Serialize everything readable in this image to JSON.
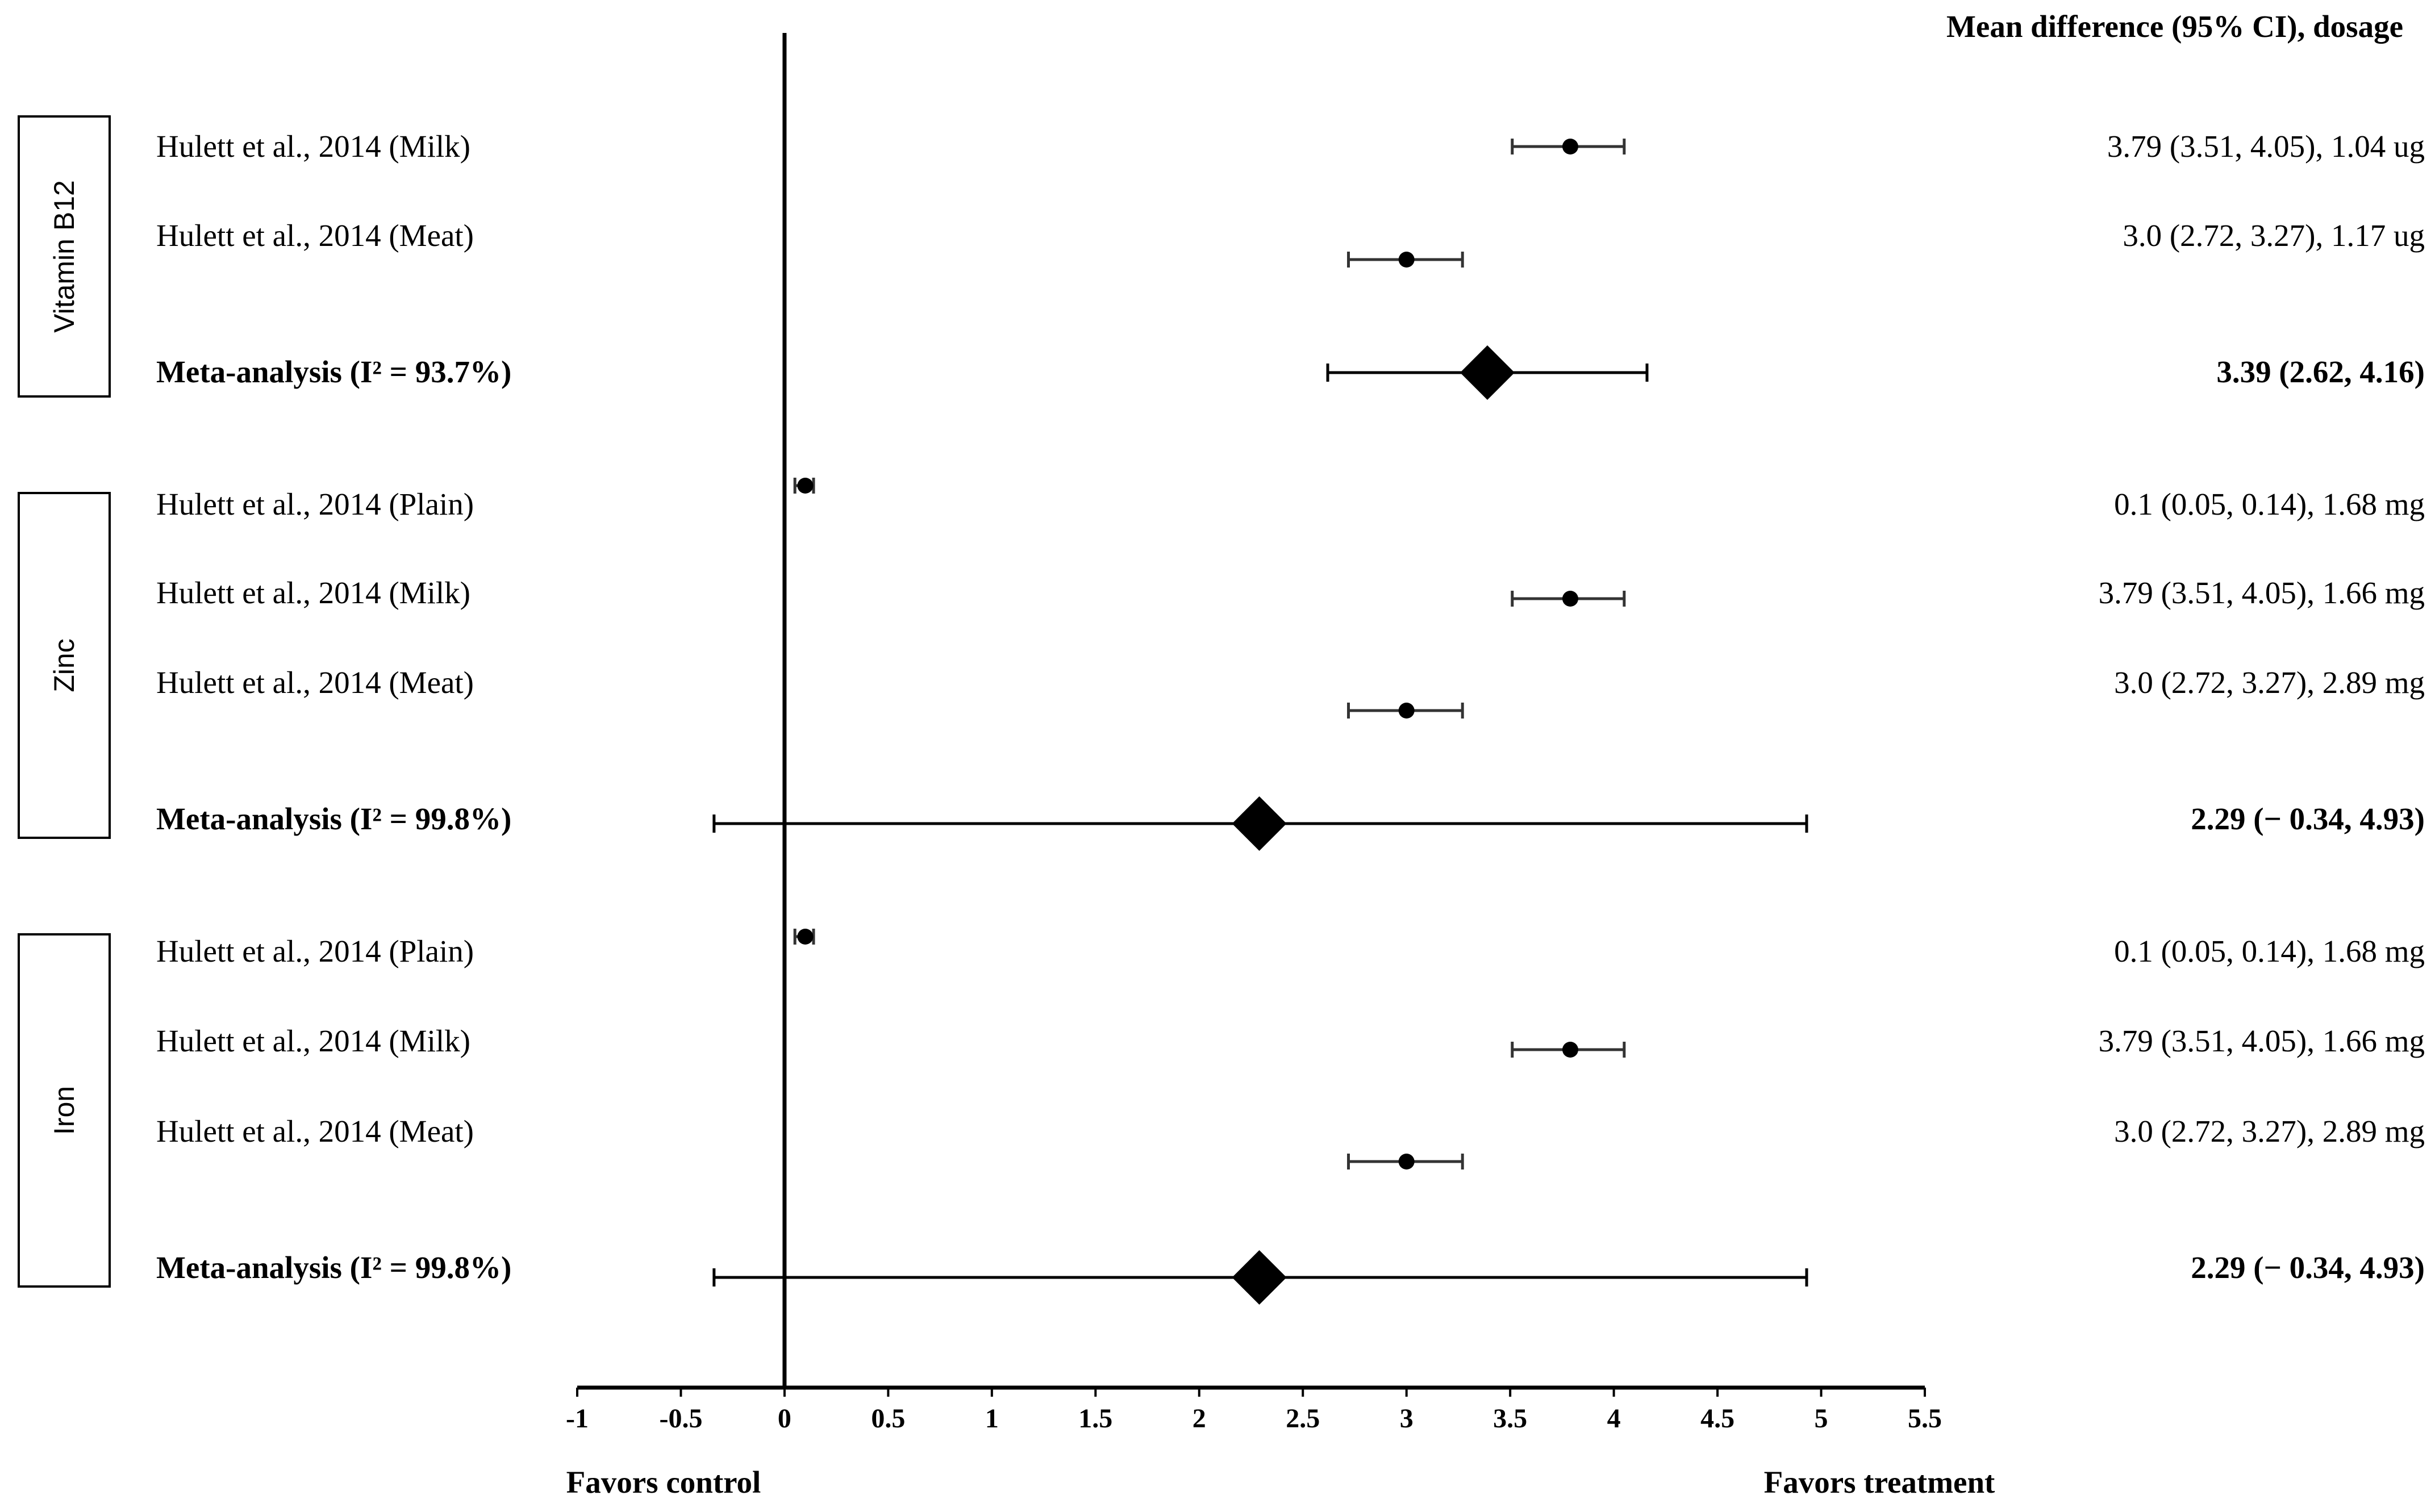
{
  "chart_data": {
    "type": "forest",
    "column_header": "Mean difference (95% CI), dosage",
    "x_ticks": [
      "-1",
      "-0.5",
      "0",
      "0.5",
      "1",
      "1.5",
      "2",
      "2.5",
      "3",
      "3.5",
      "4",
      "4.5",
      "5",
      "5.5"
    ],
    "x_tick_values": [
      -1,
      -0.5,
      0,
      0.5,
      1,
      1.5,
      2,
      2.5,
      3,
      3.5,
      4,
      4.5,
      5,
      5.5
    ],
    "xlim": [
      -1,
      5.5
    ],
    "reference_line": 0,
    "favors_left": "Favors control",
    "favors_right": "Favors treatment",
    "groups": [
      {
        "name": "Vitamin B12",
        "rows": [
          {
            "study": "Hulett et al., 2014 (Milk)",
            "mean": 3.79,
            "lower": 3.51,
            "upper": 4.05,
            "result": "3.79 (3.51, 4.05), 1.04 ug",
            "meta": false
          },
          {
            "study": "Hulett et al., 2014 (Meat)",
            "mean": 3.0,
            "lower": 2.72,
            "upper": 3.27,
            "result": "3.0 (2.72, 3.27), 1.17 ug",
            "meta": false
          },
          {
            "study": "Meta-analysis (I² = 93.7%)",
            "mean": 3.39,
            "lower": 2.62,
            "upper": 4.16,
            "result": "3.39 (2.62, 4.16)",
            "meta": true
          }
        ]
      },
      {
        "name": "Zinc",
        "rows": [
          {
            "study": "Hulett et al., 2014 (Plain)",
            "mean": 0.1,
            "lower": 0.05,
            "upper": 0.14,
            "result": "0.1 (0.05, 0.14), 1.68 mg",
            "meta": false
          },
          {
            "study": "Hulett et al., 2014 (Milk)",
            "mean": 3.79,
            "lower": 3.51,
            "upper": 4.05,
            "result": "3.79 (3.51, 4.05), 1.66 mg",
            "meta": false
          },
          {
            "study": "Hulett et al., 2014 (Meat)",
            "mean": 3.0,
            "lower": 2.72,
            "upper": 3.27,
            "result": "3.0 (2.72, 3.27), 2.89 mg",
            "meta": false
          },
          {
            "study": "Meta-analysis (I² = 99.8%)",
            "mean": 2.29,
            "lower": -0.34,
            "upper": 4.93,
            "result": "2.29 (− 0.34, 4.93)",
            "meta": true
          }
        ]
      },
      {
        "name": "Iron",
        "rows": [
          {
            "study": "Hulett et al., 2014 (Plain)",
            "mean": 0.1,
            "lower": 0.05,
            "upper": 0.14,
            "result": "0.1 (0.05, 0.14), 1.68 mg",
            "meta": false
          },
          {
            "study": "Hulett et al., 2014 (Milk)",
            "mean": 3.79,
            "lower": 3.51,
            "upper": 4.05,
            "result": "3.79 (3.51, 4.05), 1.66 mg",
            "meta": false
          },
          {
            "study": "Hulett et al., 2014 (Meat)",
            "mean": 3.0,
            "lower": 2.72,
            "upper": 3.27,
            "result": "3.0 (2.72, 3.27), 2.89 mg",
            "meta": false
          },
          {
            "study": "Meta-analysis (I² = 99.8%)",
            "mean": 2.29,
            "lower": -0.34,
            "upper": 4.93,
            "result": "2.29 (− 0.34, 4.93)",
            "meta": true
          }
        ]
      }
    ]
  }
}
